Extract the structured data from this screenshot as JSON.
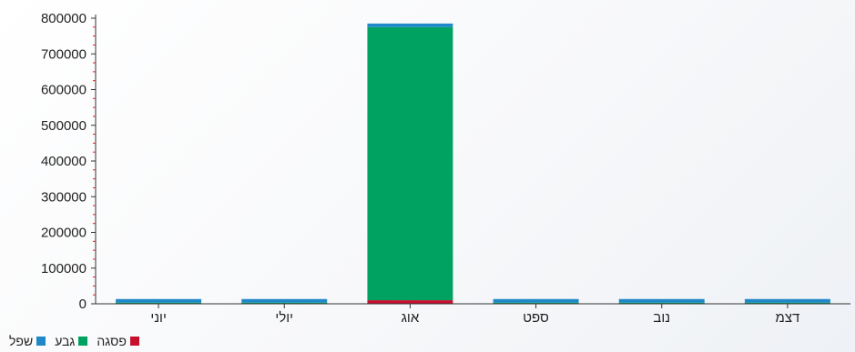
{
  "chart_data": {
    "type": "bar",
    "stacked": true,
    "categories": [
      "יוני",
      "יולי",
      "אוג",
      "ספט",
      "נוב",
      "דצמ"
    ],
    "series": [
      {
        "name": "פסגה",
        "color": "#c8102e",
        "values": [
          300,
          300,
          10000,
          300,
          300,
          300
        ]
      },
      {
        "name": "גבע",
        "color": "#00a261",
        "values": [
          3000,
          3000,
          765000,
          3000,
          3000,
          3000
        ]
      },
      {
        "name": "שפל",
        "color": "#1e88c8",
        "values": [
          10000,
          10000,
          10000,
          10000,
          10000,
          10000
        ]
      }
    ],
    "ylim": [
      0,
      800000
    ],
    "yticks": [
      0,
      100000,
      200000,
      300000,
      400000,
      500000,
      600000,
      700000,
      800000
    ],
    "legend_position": "bottom-left",
    "grid": false
  }
}
